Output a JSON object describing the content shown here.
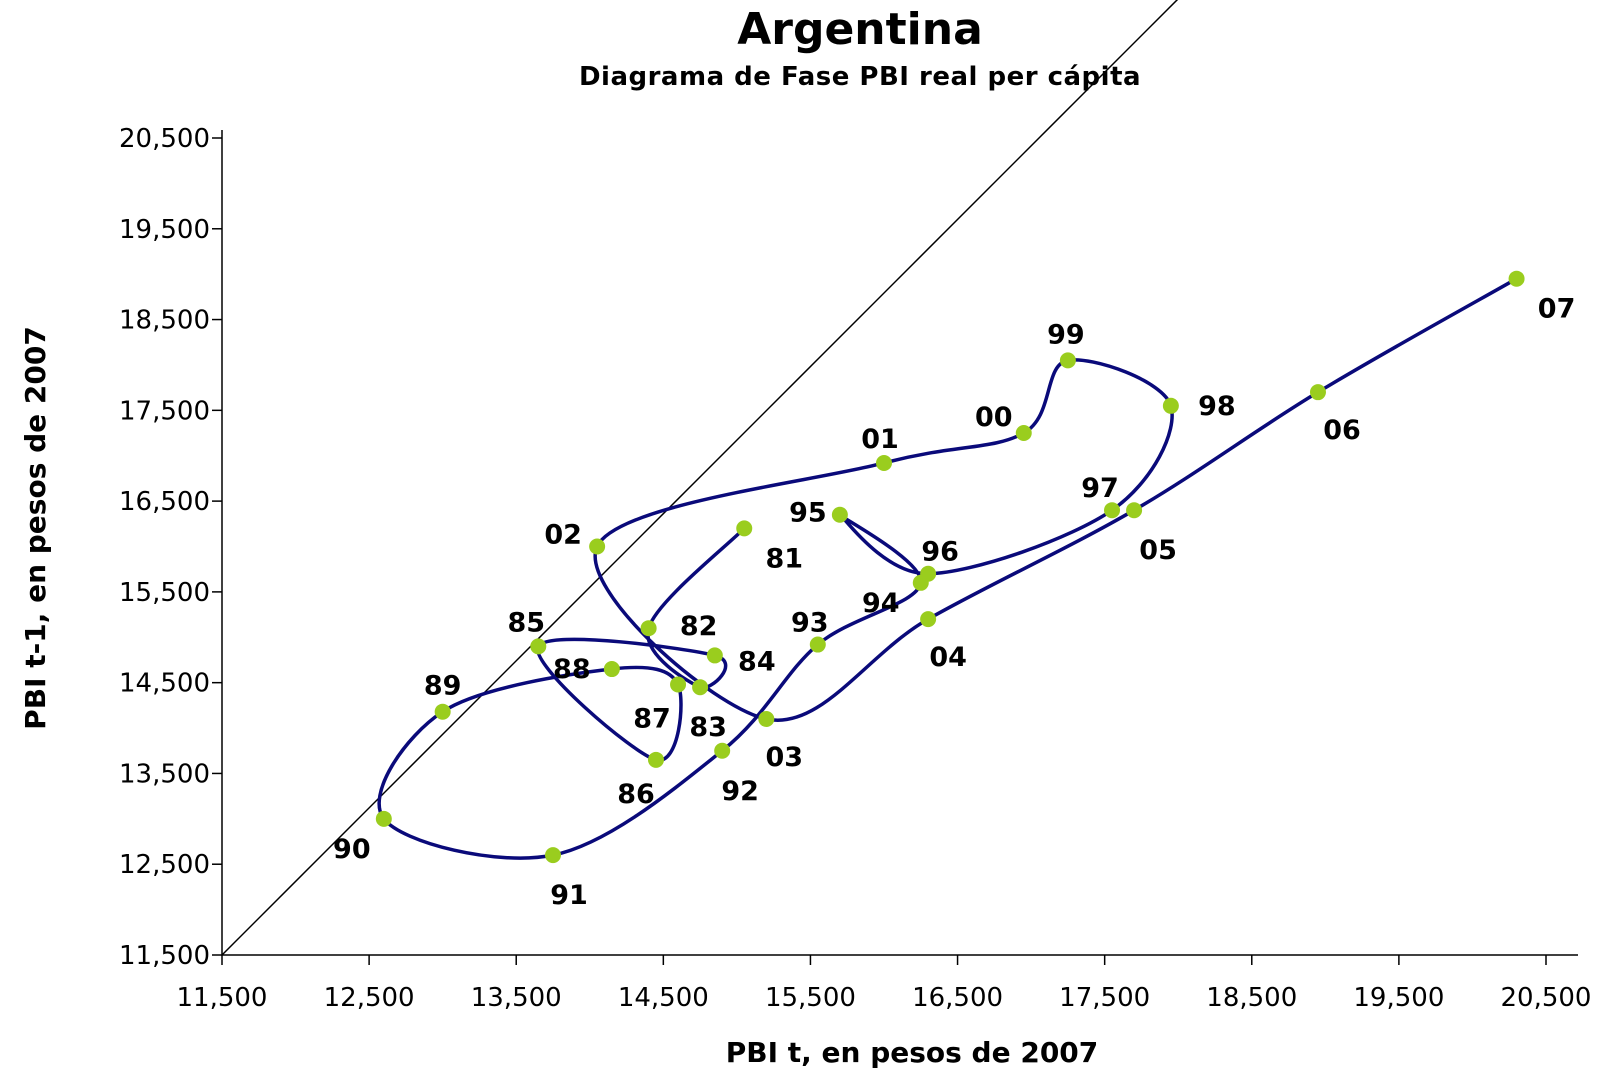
{
  "chart_data": {
    "type": "line",
    "title": "Argentina",
    "subtitle": "Diagrama de Fase PBI real per cápita",
    "xlabel": "PBI  t, en pesos de 2007",
    "ylabel": "PBI  t-1, en pesos de 2007",
    "xlim": [
      11500,
      20500
    ],
    "ylim": [
      11500,
      20500
    ],
    "xticks": [
      "11,500",
      "12,500",
      "13,500",
      "14,500",
      "15,500",
      "16,500",
      "17,500",
      "18,500",
      "19,500",
      "20,500"
    ],
    "yticks": [
      "11,500",
      "12,500",
      "13,500",
      "14,500",
      "15,500",
      "16,500",
      "17,500",
      "18,500",
      "19,500",
      "20,500"
    ],
    "reference_line": "y = x",
    "series_color": "#0a0a7a",
    "marker_color": "#9acd1e",
    "points": [
      {
        "label": "81",
        "x": 15050,
        "y": 16200
      },
      {
        "label": "82",
        "x": 14400,
        "y": 15100
      },
      {
        "label": "83",
        "x": 14750,
        "y": 14450
      },
      {
        "label": "84",
        "x": 14850,
        "y": 14800
      },
      {
        "label": "85",
        "x": 13650,
        "y": 14900
      },
      {
        "label": "86",
        "x": 14450,
        "y": 13650
      },
      {
        "label": "87",
        "x": 14600,
        "y": 14480
      },
      {
        "label": "88",
        "x": 14150,
        "y": 14650
      },
      {
        "label": "89",
        "x": 13000,
        "y": 14180
      },
      {
        "label": "90",
        "x": 12600,
        "y": 13000
      },
      {
        "label": "91",
        "x": 13750,
        "y": 12600
      },
      {
        "label": "92",
        "x": 14900,
        "y": 13750
      },
      {
        "label": "93",
        "x": 15550,
        "y": 14920
      },
      {
        "label": "94",
        "x": 16250,
        "y": 15600
      },
      {
        "label": "95",
        "x": 15700,
        "y": 16350
      },
      {
        "label": "96",
        "x": 16300,
        "y": 15700
      },
      {
        "label": "97",
        "x": 17550,
        "y": 16400
      },
      {
        "label": "98",
        "x": 17950,
        "y": 17550
      },
      {
        "label": "99",
        "x": 17250,
        "y": 18050
      },
      {
        "label": "00",
        "x": 16950,
        "y": 17250
      },
      {
        "label": "01",
        "x": 16000,
        "y": 16920
      },
      {
        "label": "02",
        "x": 14050,
        "y": 16000
      },
      {
        "label": "03",
        "x": 15200,
        "y": 14100
      },
      {
        "label": "04",
        "x": 16300,
        "y": 15200
      },
      {
        "label": "05",
        "x": 17700,
        "y": 16400
      },
      {
        "label": "06",
        "x": 18950,
        "y": 17700
      },
      {
        "label": "07",
        "x": 20300,
        "y": 18950
      }
    ]
  }
}
